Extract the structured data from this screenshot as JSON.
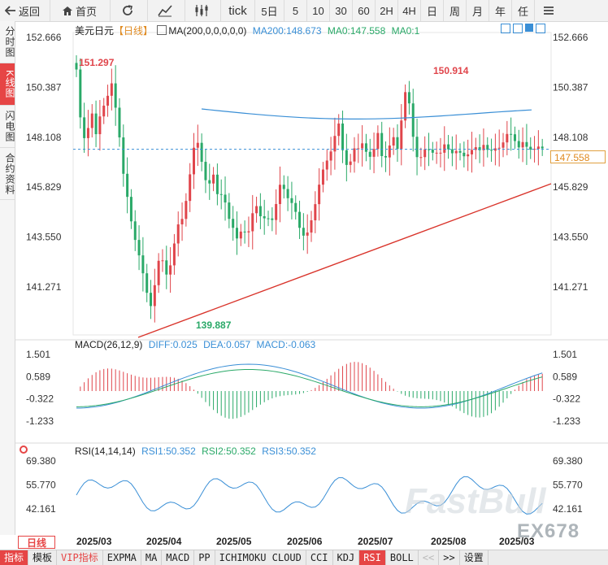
{
  "toolbar": {
    "back_label": "返回",
    "home_label": "首页",
    "tick_label": "tick",
    "periods": [
      "5日",
      "5",
      "10",
      "30",
      "60",
      "2H",
      "4H",
      "日",
      "周",
      "月",
      "年",
      "任"
    ]
  },
  "sidebar": {
    "items": [
      {
        "label": "分时图",
        "active": false
      },
      {
        "label": "K线图",
        "active": true
      },
      {
        "label": "闪电图",
        "active": false
      },
      {
        "label": "合约资料",
        "active": false
      }
    ]
  },
  "main_legend": {
    "symbol": "美元日元",
    "period_tag": "【日线】",
    "ma_params": "MA(200,0,0,0,0,0)",
    "ma200": "MA200:148.673",
    "ma0a": "MA0:147.558",
    "ma0b": "MA0:1"
  },
  "price_axis": [
    "152.666",
    "150.387",
    "148.108",
    "145.829",
    "143.550",
    "141.271"
  ],
  "last_price": "147.558",
  "annotations": {
    "high1": "151.297",
    "high2": "150.914",
    "low": "139.887"
  },
  "macd_legend": {
    "title": "MACD(26,12,9)",
    "diff": "DIFF:0.025",
    "dea": "DEA:0.057",
    "macd": "MACD:-0.063"
  },
  "macd_axis": [
    "1.501",
    "0.589",
    "-0.322",
    "-1.233"
  ],
  "rsi_legend": {
    "title": "RSI(14,14,14)",
    "rsi1": "RSI1:50.352",
    "rsi2": "RSI2:50.352",
    "rsi3": "RSI3:50.352"
  },
  "rsi_axis": [
    "69.380",
    "55.770",
    "42.161"
  ],
  "period_label": "日线",
  "date_axis": [
    "2025/03",
    "2025/04",
    "2025/05",
    "2025/06",
    "2025/07",
    "2025/08",
    "2025/03"
  ],
  "tabs": [
    "指标",
    "模板",
    "VIP指标",
    "EXPMA",
    "MA",
    "MACD",
    "PP",
    "ICHIMOKU CLOUD",
    "CCI",
    "KDJ",
    "RSI",
    "BOLL",
    "<<",
    ">>",
    "设置"
  ],
  "watermark": {
    "brand": "FastBull",
    "code": "EX678"
  },
  "colors": {
    "up": "#e0454b",
    "down": "#2aa968",
    "ma_line": "#3a8fd6",
    "trendline": "#d9342b",
    "accent": "#e64545"
  }
}
